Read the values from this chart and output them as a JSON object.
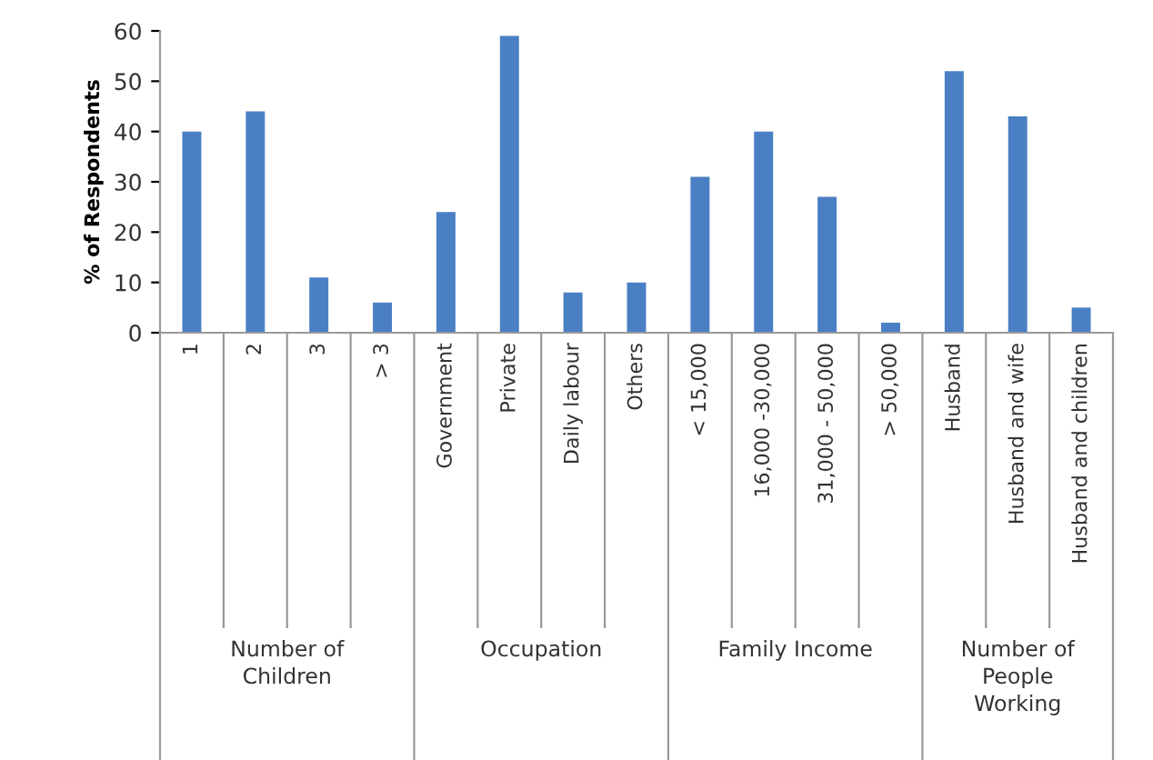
{
  "chart_data": {
    "type": "bar",
    "ylabel": "% of Respondents",
    "categories": [
      "1",
      "2",
      "3",
      "> 3",
      "Government",
      "Private",
      "Daily labour",
      "Others",
      "< 15,000",
      "16,000 -30,000",
      "31,000 - 50,000",
      "> 50,000",
      "Husband",
      "Husband and wife",
      "Husband and children"
    ],
    "values": [
      40,
      44,
      11,
      6,
      24,
      59,
      8,
      10,
      31,
      40,
      27,
      2,
      52,
      43,
      5
    ],
    "color": "#4a7fc4",
    "ylim": [
      0,
      60
    ],
    "yticks": [
      0,
      10,
      20,
      30,
      40,
      50,
      60
    ],
    "annotations": [
      "Number of\nChildren",
      "Occupation",
      "Family Income",
      "Number of\nPeople\nWorking"
    ]
  }
}
